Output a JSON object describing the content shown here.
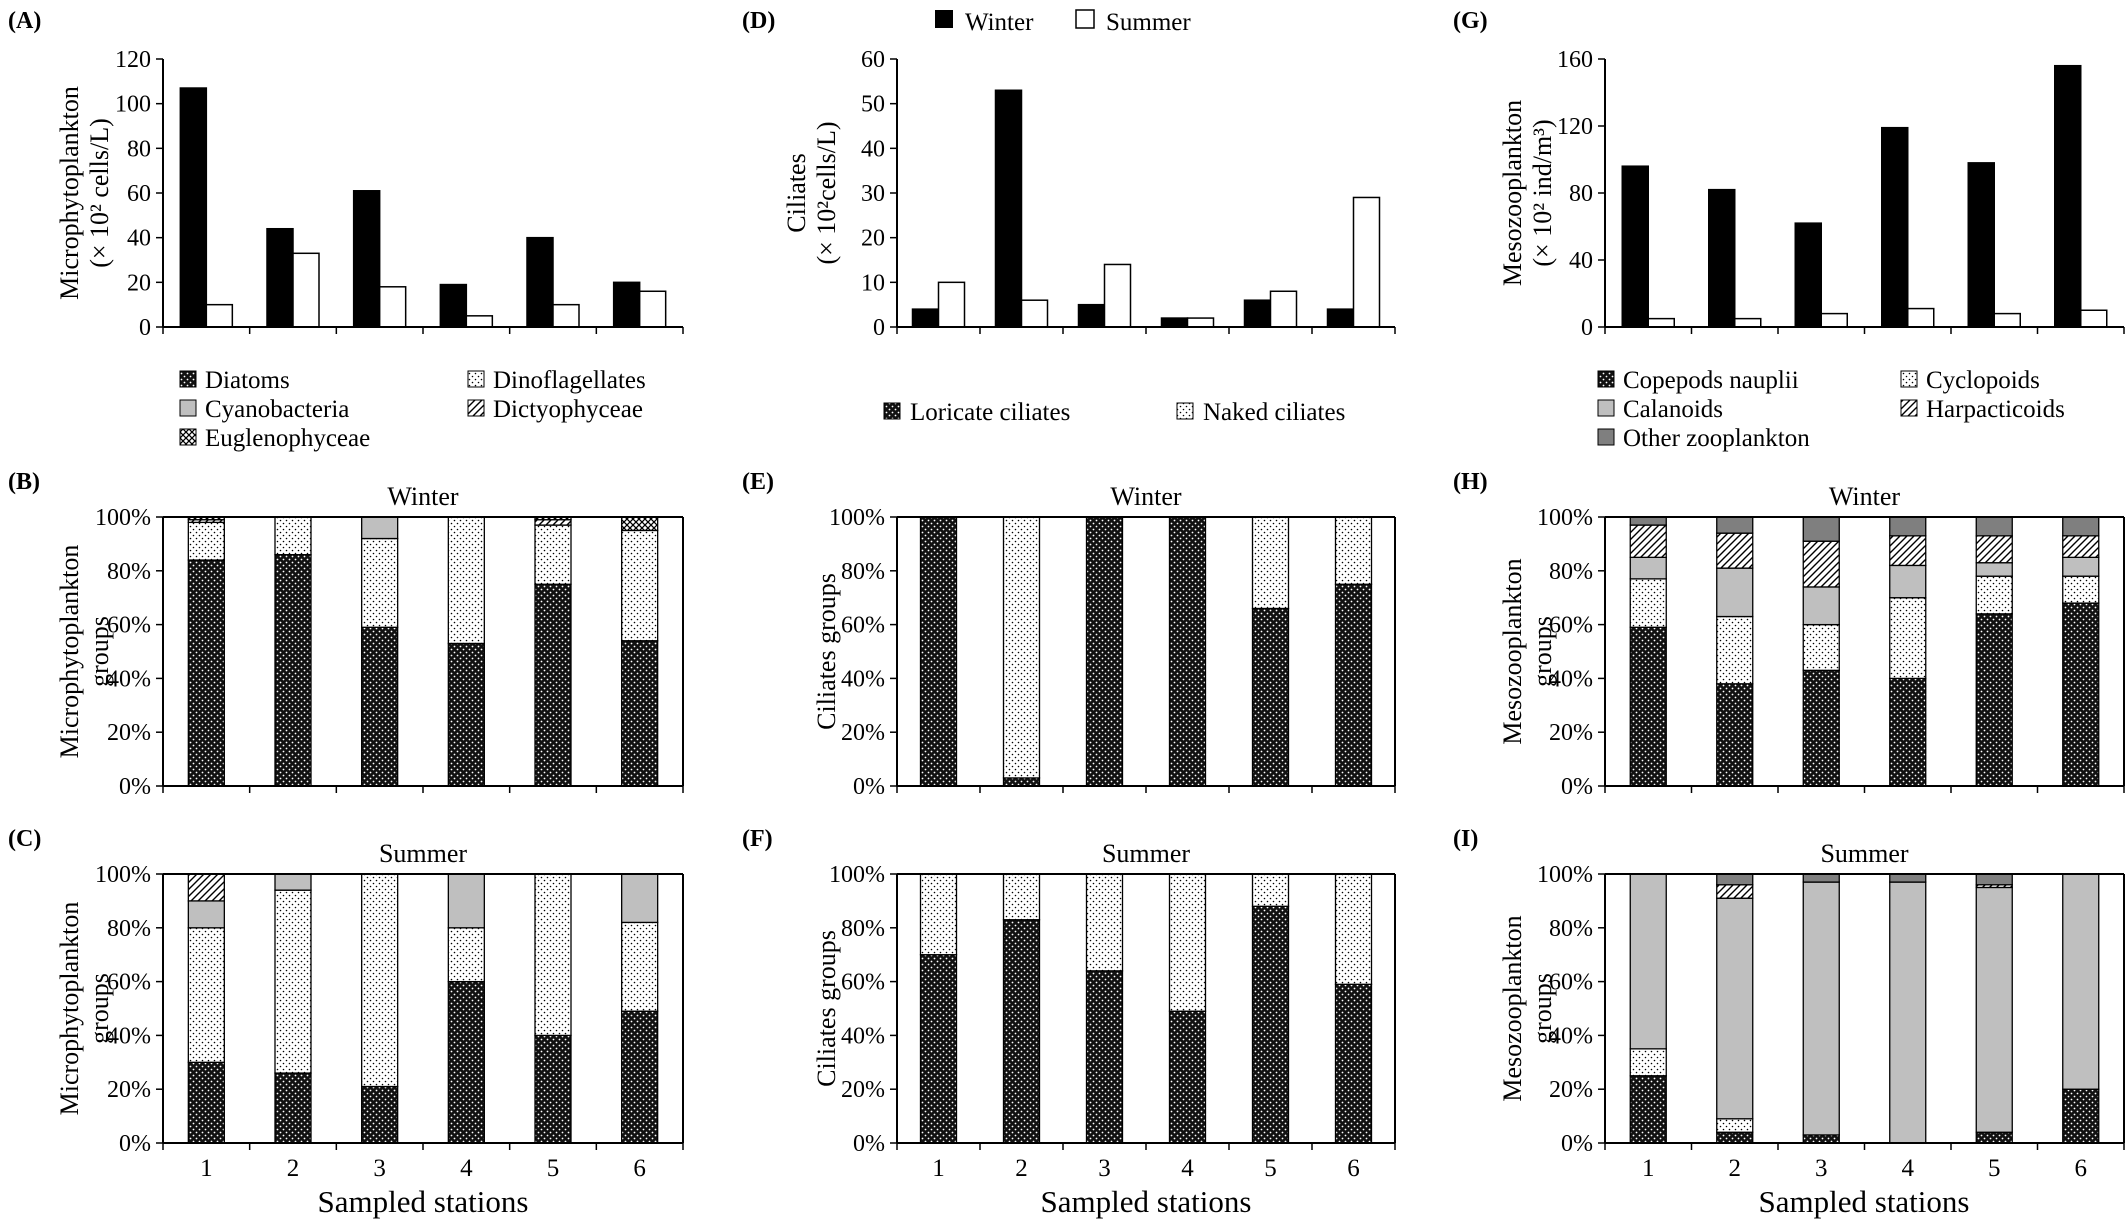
{
  "figure": {
    "x_axis_label": "Sampled stations",
    "winter_label": "Winter",
    "summer_label": "Summer",
    "stations": [
      "1",
      "2",
      "3",
      "4",
      "5",
      "6"
    ],
    "percent_ticks": [
      "0%",
      "20%",
      "40%",
      "60%",
      "80%",
      "100%"
    ],
    "legend_abundance": {
      "winter": "Winter",
      "summer": "Summer"
    },
    "legend_micro": [
      "Diatoms",
      "Dinoflagellates",
      "Cyanobacteria",
      "Dictyophyceae",
      "Euglenophyceae"
    ],
    "legend_ciliates": [
      "Loricate ciliates",
      "Naked ciliates"
    ],
    "legend_meso": [
      "Copepods nauplii",
      "Cyclopoids",
      "Calanoids",
      "Harpacticoids",
      "Other zooplankton"
    ]
  },
  "colors": {
    "winter": "#000000",
    "summer": "#ffffff",
    "cyanobacteria": "#bfbfbf",
    "calanoids": "#bfbfbf",
    "other_zooplankton": "#7f7f7f"
  },
  "chart_data": [
    {
      "panel": "(A)",
      "type": "bar",
      "ylabel": [
        "Microphytoplankton",
        "(× 10² cells/L)"
      ],
      "ylim": [
        0,
        120
      ],
      "yticks": [
        0,
        20,
        40,
        60,
        80,
        100,
        120
      ],
      "categories": [
        "1",
        "2",
        "3",
        "4",
        "5",
        "6"
      ],
      "series": [
        {
          "name": "Winter",
          "values": [
            107,
            44,
            61,
            19,
            40,
            20
          ]
        },
        {
          "name": "Summer",
          "values": [
            10,
            33,
            18,
            5,
            10,
            16
          ]
        }
      ]
    },
    {
      "panel": "(D)",
      "type": "bar",
      "ylabel": [
        "Ciliates",
        "(× 10²cells/L)"
      ],
      "ylim": [
        0,
        60
      ],
      "yticks": [
        0,
        10,
        20,
        30,
        40,
        50,
        60
      ],
      "categories": [
        "1",
        "2",
        "3",
        "4",
        "5",
        "6"
      ],
      "series": [
        {
          "name": "Winter",
          "values": [
            4,
            53,
            5,
            2,
            6,
            4
          ]
        },
        {
          "name": "Summer",
          "values": [
            10,
            6,
            14,
            2,
            8,
            29
          ]
        }
      ]
    },
    {
      "panel": "(G)",
      "type": "bar",
      "ylabel": [
        "Mesozooplankton",
        "(× 10² ind/m³)"
      ],
      "ylim": [
        0,
        160
      ],
      "yticks": [
        0,
        40,
        80,
        120,
        160
      ],
      "categories": [
        "1",
        "2",
        "3",
        "4",
        "5",
        "6"
      ],
      "series": [
        {
          "name": "Winter",
          "values": [
            96,
            82,
            62,
            119,
            98,
            156
          ]
        },
        {
          "name": "Summer",
          "values": [
            5,
            5,
            8,
            11,
            8,
            10
          ]
        }
      ]
    },
    {
      "panel": "(B)",
      "type": "bar",
      "stacked_percent": true,
      "season": "Winter",
      "ylabel": [
        "Microphytoplankton",
        "groups"
      ],
      "categories": [
        "1",
        "2",
        "3",
        "4",
        "5",
        "6"
      ],
      "series": [
        {
          "name": "Diatoms",
          "values": [
            84,
            86,
            59,
            53,
            75,
            54
          ]
        },
        {
          "name": "Dinoflagellates",
          "values": [
            14,
            14,
            33,
            47,
            22,
            41
          ]
        },
        {
          "name": "Cyanobacteria",
          "values": [
            0,
            0,
            8,
            0,
            0,
            0
          ]
        },
        {
          "name": "Dictyophyceae",
          "values": [
            1,
            0,
            0,
            0,
            2,
            0
          ]
        },
        {
          "name": "Euglenophyceae",
          "values": [
            1,
            0,
            0,
            0,
            1,
            5
          ]
        }
      ]
    },
    {
      "panel": "(C)",
      "type": "bar",
      "stacked_percent": true,
      "season": "Summer",
      "ylabel": [
        "Microphytoplankton",
        "groups"
      ],
      "categories": [
        "1",
        "2",
        "3",
        "4",
        "5",
        "6"
      ],
      "series": [
        {
          "name": "Diatoms",
          "values": [
            30,
            26,
            21,
            60,
            40,
            49
          ]
        },
        {
          "name": "Dinoflagellates",
          "values": [
            50,
            68,
            79,
            20,
            60,
            33
          ]
        },
        {
          "name": "Cyanobacteria",
          "values": [
            10,
            6,
            0,
            20,
            0,
            18
          ]
        },
        {
          "name": "Dictyophyceae",
          "values": [
            10,
            0,
            0,
            0,
            0,
            0
          ]
        },
        {
          "name": "Euglenophyceae",
          "values": [
            0,
            0,
            0,
            0,
            0,
            0
          ]
        }
      ]
    },
    {
      "panel": "(E)",
      "type": "bar",
      "stacked_percent": true,
      "season": "Winter",
      "ylabel": [
        "Ciliates groups"
      ],
      "categories": [
        "1",
        "2",
        "3",
        "4",
        "5",
        "6"
      ],
      "series": [
        {
          "name": "Loricate ciliates",
          "values": [
            100,
            3,
            100,
            100,
            66,
            75
          ]
        },
        {
          "name": "Naked ciliates",
          "values": [
            0,
            97,
            0,
            0,
            34,
            25
          ]
        }
      ]
    },
    {
      "panel": "(F)",
      "type": "bar",
      "stacked_percent": true,
      "season": "Summer",
      "ylabel": [
        "Ciliates  groups"
      ],
      "categories": [
        "1",
        "2",
        "3",
        "4",
        "5",
        "6"
      ],
      "series": [
        {
          "name": "Loricate ciliates",
          "values": [
            70,
            83,
            64,
            49,
            88,
            59
          ]
        },
        {
          "name": "Naked ciliates",
          "values": [
            30,
            17,
            36,
            51,
            12,
            41
          ]
        }
      ]
    },
    {
      "panel": "(H)",
      "type": "bar",
      "stacked_percent": true,
      "season": "Winter",
      "ylabel": [
        "Mesozooplankton",
        "groups"
      ],
      "categories": [
        "1",
        "2",
        "3",
        "4",
        "5",
        "6"
      ],
      "series": [
        {
          "name": "Copepods nauplii",
          "values": [
            59,
            38,
            43,
            40,
            64,
            68
          ]
        },
        {
          "name": "Cyclopoids",
          "values": [
            18,
            25,
            17,
            30,
            14,
            10
          ]
        },
        {
          "name": "Calanoids",
          "values": [
            8,
            18,
            14,
            12,
            5,
            7
          ]
        },
        {
          "name": "Harpacticoids",
          "values": [
            12,
            13,
            17,
            11,
            10,
            8
          ]
        },
        {
          "name": "Other zooplankton",
          "values": [
            3,
            6,
            9,
            7,
            7,
            7
          ]
        }
      ]
    },
    {
      "panel": "(I)",
      "type": "bar",
      "stacked_percent": true,
      "season": "Summer",
      "ylabel": [
        "Mesozooplankton",
        "groups"
      ],
      "categories": [
        "1",
        "2",
        "3",
        "4",
        "5",
        "6"
      ],
      "series": [
        {
          "name": "Copepods nauplii",
          "values": [
            25,
            4,
            3,
            0,
            4,
            20
          ]
        },
        {
          "name": "Cyclopoids",
          "values": [
            10,
            5,
            0,
            0,
            0,
            0
          ]
        },
        {
          "name": "Calanoids",
          "values": [
            65,
            82,
            94,
            97,
            91,
            80
          ]
        },
        {
          "name": "Harpacticoids",
          "values": [
            0,
            5,
            0,
            0,
            1,
            0
          ]
        },
        {
          "name": "Other zooplankton",
          "values": [
            0,
            4,
            3,
            3,
            4,
            0
          ]
        }
      ]
    }
  ]
}
